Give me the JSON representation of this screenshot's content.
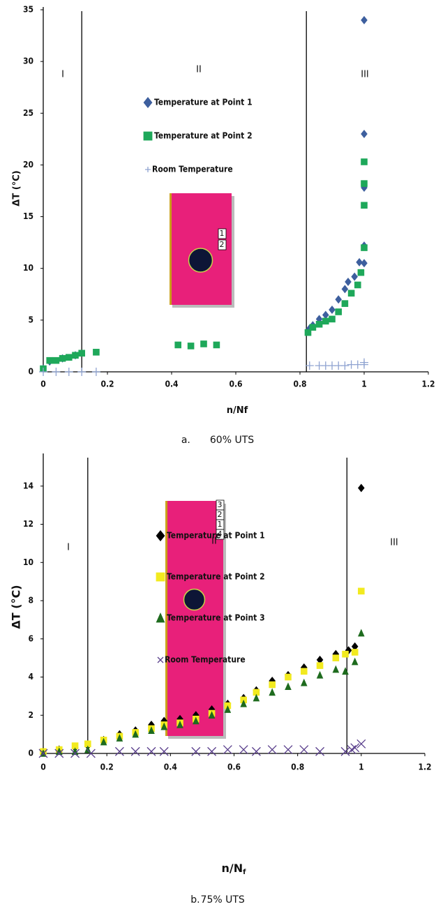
{
  "chart_data": [
    {
      "type": "scatter",
      "caption_letter": "a.",
      "caption": "60% UTS",
      "x_label": "n/Nf",
      "y_label": "ΔT (°C)",
      "xlim": [
        0,
        1.2
      ],
      "ylim": [
        0,
        35
      ],
      "xticks": [
        0,
        0.2,
        0.4,
        0.6,
        0.8,
        1,
        1.2
      ],
      "yticks": [
        0,
        5,
        10,
        15,
        20,
        25,
        30,
        35
      ],
      "region_bounds": [
        0.12,
        0.82
      ],
      "region_labels": [
        "I",
        "II",
        "III"
      ],
      "inset_labels": [
        "1",
        "2"
      ],
      "series": [
        {
          "name": "Temperature at Point 1",
          "color": "#3d5f9e",
          "marker": "diamond",
          "x": [
            0,
            0.02,
            0.06,
            0.1,
            0.83,
            0.84,
            0.86,
            0.88,
            0.9,
            0.92,
            0.94,
            0.95,
            0.97,
            0.985,
            1,
            1,
            1,
            1,
            1
          ],
          "values": [
            0.3,
            1,
            1.3,
            1.6,
            4.2,
            4.5,
            5.1,
            5.5,
            6,
            7,
            8,
            8.7,
            9.2,
            10.6,
            12.2,
            10.5,
            17.8,
            23,
            34
          ]
        },
        {
          "name": "Temperature at Point 2",
          "color": "#1ea85a",
          "marker": "square",
          "x": [
            0,
            0.02,
            0.04,
            0.06,
            0.08,
            0.1,
            0.12,
            0.165,
            0.42,
            0.46,
            0.5,
            0.54,
            0.825,
            0.84,
            0.86,
            0.88,
            0.9,
            0.92,
            0.94,
            0.96,
            0.98,
            0.99,
            1,
            1,
            1,
            1
          ],
          "values": [
            0.3,
            1.1,
            1.1,
            1.3,
            1.4,
            1.6,
            1.8,
            1.9,
            2.6,
            2.5,
            2.7,
            2.6,
            3.8,
            4.3,
            4.6,
            4.9,
            5.1,
            5.8,
            6.6,
            7.6,
            8.4,
            9.6,
            12,
            16.1,
            18.2,
            20.3
          ]
        },
        {
          "name": "Room Temperature",
          "color": "#8fa3d1",
          "marker": "plus",
          "x": [
            0,
            0.04,
            0.08,
            0.12,
            0.165,
            0.83,
            0.86,
            0.88,
            0.9,
            0.92,
            0.94,
            0.96,
            0.98,
            1,
            1
          ],
          "values": [
            0,
            0,
            0,
            0,
            0,
            0.6,
            0.6,
            0.6,
            0.6,
            0.6,
            0.6,
            0.7,
            0.7,
            0.7,
            0.9
          ]
        }
      ]
    },
    {
      "type": "scatter",
      "caption_letter": "b.",
      "caption": "75% UTS",
      "x_label": "n/N",
      "x_label_subscript": "f",
      "y_label": "ΔT (°C)",
      "xlim": [
        0,
        1.2
      ],
      "ylim": [
        0,
        15.6
      ],
      "xticks": [
        0,
        0.2,
        0.4,
        0.6,
        0.8,
        1,
        1.2
      ],
      "yticks": [
        0,
        2,
        4,
        6,
        8,
        10,
        12,
        14
      ],
      "region_bounds": [
        0.14,
        0.955
      ],
      "region_labels": [
        "I",
        "II",
        "III"
      ],
      "inset_labels": [
        "3",
        "2",
        "1",
        "4"
      ],
      "series": [
        {
          "name": "Temperature at Point 1",
          "color": "#000000",
          "marker": "diamond",
          "x": [
            0,
            0.05,
            0.1,
            0.14,
            0.19,
            0.24,
            0.29,
            0.34,
            0.38,
            0.43,
            0.48,
            0.53,
            0.58,
            0.63,
            0.67,
            0.72,
            0.77,
            0.82,
            0.87,
            0.92,
            0.96,
            0.98,
            1
          ],
          "values": [
            0.1,
            0.2,
            0.3,
            0.4,
            0.7,
            1,
            1.2,
            1.5,
            1.7,
            1.8,
            2,
            2.3,
            2.6,
            2.9,
            3.3,
            3.8,
            4.1,
            4.5,
            4.9,
            5.2,
            5.4,
            5.6,
            13.9
          ]
        },
        {
          "name": "Temperature at Point 2",
          "color": "#f2ea1f",
          "marker": "square",
          "x": [
            0,
            0.05,
            0.1,
            0.14,
            0.19,
            0.24,
            0.29,
            0.34,
            0.38,
            0.43,
            0.48,
            0.53,
            0.58,
            0.63,
            0.67,
            0.72,
            0.77,
            0.82,
            0.87,
            0.92,
            0.95,
            0.98,
            1
          ],
          "values": [
            0.1,
            0.2,
            0.4,
            0.5,
            0.7,
            0.9,
            1.1,
            1.3,
            1.5,
            1.6,
            1.8,
            2.1,
            2.5,
            2.8,
            3.2,
            3.6,
            4,
            4.3,
            4.6,
            5,
            5.2,
            5.3,
            8.5
          ]
        },
        {
          "name": "Temperature at Point 3",
          "color": "#1e6b1e",
          "marker": "triangle",
          "x": [
            0,
            0.05,
            0.1,
            0.14,
            0.19,
            0.24,
            0.29,
            0.34,
            0.38,
            0.43,
            0.48,
            0.53,
            0.58,
            0.63,
            0.67,
            0.72,
            0.77,
            0.82,
            0.87,
            0.92,
            0.95,
            0.98,
            1
          ],
          "values": [
            0,
            0.1,
            0.1,
            0.2,
            0.6,
            0.8,
            1,
            1.2,
            1.4,
            1.5,
            1.7,
            2,
            2.3,
            2.6,
            2.9,
            3.2,
            3.5,
            3.7,
            4.1,
            4.4,
            4.3,
            4.8,
            6.3
          ]
        },
        {
          "name": "Room Temperature",
          "color": "#5a3f8c",
          "marker": "x",
          "x": [
            0,
            0.05,
            0.1,
            0.15,
            0.24,
            0.29,
            0.34,
            0.38,
            0.48,
            0.53,
            0.58,
            0.63,
            0.67,
            0.72,
            0.77,
            0.82,
            0.87,
            0.95,
            0.97,
            0.98,
            1
          ],
          "values": [
            0,
            0,
            0,
            0,
            0.1,
            0.1,
            0.1,
            0.1,
            0.1,
            0.1,
            0.2,
            0.2,
            0.1,
            0.2,
            0.2,
            0.2,
            0.1,
            0.1,
            0.2,
            0.3,
            0.5
          ]
        }
      ]
    }
  ]
}
